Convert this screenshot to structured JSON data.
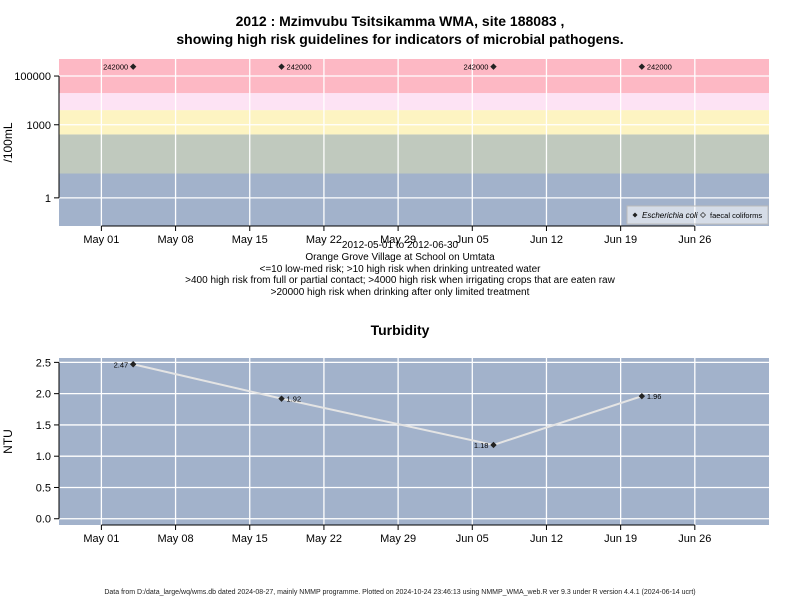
{
  "title_line1": "2012 : Mzimvubu Tsitsikamma WMA, site 188083 ,",
  "title_line2": "showing high risk guidelines for indicators of microbial pathogens.",
  "subtitle_lines": [
    "2012-05-01 to 2012-06-30",
    "Orange Grove Village at School on Umtata",
    "<=10 low-med risk; >10 high risk when drinking untreated water",
    ">400 high risk from full or partial contact; >4000 high risk when irrigating crops that are eaten raw",
    ">20000 high risk when drinking after only limited treatment"
  ],
  "footer": "Data from D:/data_large/wq/wms.db dated 2024-08-27, mainly NMMP programme. Plotted on 2024-10-24 23:46:13 using NMMP_WMA_web.R ver 9.3 under R version 4.4.1 (2024-06-14 ucrt)",
  "chart_data": [
    {
      "type": "scatter",
      "ylabel": "/100mL",
      "y_scale": "log",
      "y_ticks": [
        "1",
        "1000",
        "100000"
      ],
      "x_ticks": [
        "May 01",
        "May 08",
        "May 15",
        "May 22",
        "May 29",
        "Jun 05",
        "Jun 12",
        "Jun 19",
        "Jun 26"
      ],
      "x_range": [
        "2012-04-27",
        "2012-07-03"
      ],
      "grid": true,
      "risk_bands": [
        {
          "from": 0.07,
          "to": 10,
          "color": "#a2b2cb"
        },
        {
          "from": 10,
          "to": 400,
          "color": "#c0c9be"
        },
        {
          "from": 400,
          "to": 4000,
          "color": "#fdf4c2"
        },
        {
          "from": 4000,
          "to": 20000,
          "color": "#fde3f4"
        },
        {
          "from": 20000,
          "to": 500000,
          "color": "#fdb8c4"
        }
      ],
      "legend": {
        "position": "bottom-right",
        "items": [
          "Escherichia coli",
          "faecal coliforms"
        ]
      },
      "series": [
        {
          "name": "Escherichia coli",
          "x": [
            "2012-05-04",
            "2012-05-18",
            "2012-06-07",
            "2012-06-21"
          ],
          "y": [
            242000,
            242000,
            242000,
            242000
          ],
          "labels": [
            "242000",
            "242000",
            "242000",
            "242000"
          ]
        }
      ]
    },
    {
      "type": "line",
      "title": "Turbidity",
      "ylabel": "NTU",
      "ylim": [
        -0.1,
        2.57
      ],
      "y_ticks": [
        "0.0",
        "0.5",
        "1.0",
        "1.5",
        "2.0",
        "2.5"
      ],
      "x_ticks": [
        "May 01",
        "May 08",
        "May 15",
        "May 22",
        "May 29",
        "Jun 05",
        "Jun 12",
        "Jun 19",
        "Jun 26"
      ],
      "x_range": [
        "2012-04-27",
        "2012-07-03"
      ],
      "grid": true,
      "background": "#a2b2cb",
      "series": [
        {
          "x": [
            "2012-05-04",
            "2012-05-18",
            "2012-06-07",
            "2012-06-21"
          ],
          "y": [
            2.47,
            1.92,
            1.18,
            1.96
          ],
          "labels": [
            "2.47",
            "1.92",
            "1.18",
            "1.96"
          ]
        }
      ]
    }
  ]
}
